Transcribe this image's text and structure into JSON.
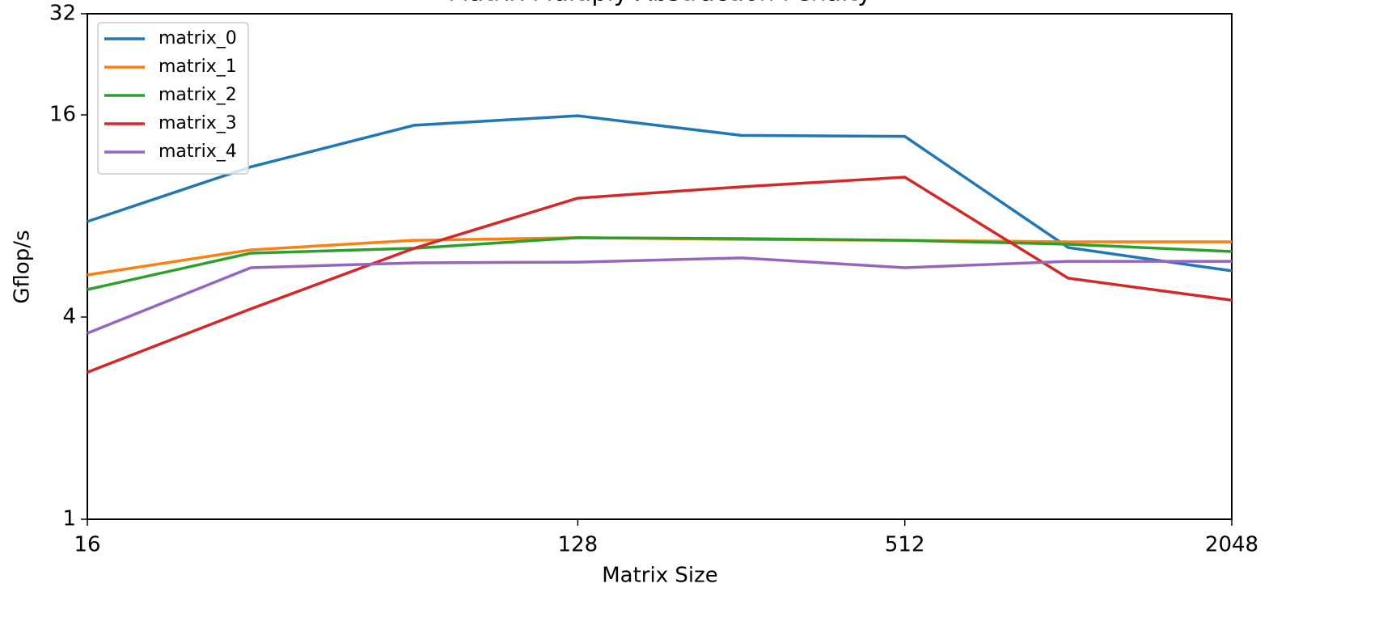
{
  "chart_data": {
    "type": "line",
    "title": "Matrix Multiply Abstraction Penalty",
    "xlabel": "Matrix Size",
    "ylabel": "Gflop/s",
    "x": [
      16,
      32,
      64,
      128,
      256,
      512,
      1024,
      2048
    ],
    "series": [
      {
        "name": "matrix_0",
        "color": "#1f77b4",
        "values": [
          7.7,
          11.2,
          14.9,
          15.9,
          13.9,
          13.8,
          6.44,
          5.49
        ]
      },
      {
        "name": "matrix_1",
        "color": "#ff7f0e",
        "values": [
          5.34,
          6.34,
          6.77,
          6.89,
          6.81,
          6.77,
          6.7,
          6.7
        ]
      },
      {
        "name": "matrix_2",
        "color": "#2ca02c",
        "values": [
          4.83,
          6.2,
          6.41,
          6.89,
          6.85,
          6.77,
          6.59,
          6.27
        ]
      },
      {
        "name": "matrix_3",
        "color": "#d62728",
        "values": [
          2.74,
          4.23,
          6.41,
          9.04,
          9.77,
          10.44,
          5.22,
          4.49
        ]
      },
      {
        "name": "matrix_4",
        "color": "#9467bd",
        "values": [
          3.58,
          5.61,
          5.8,
          5.83,
          6.0,
          5.61,
          5.86,
          5.86
        ]
      }
    ],
    "xlim": [
      16,
      2048
    ],
    "xticks": [
      16,
      128,
      512,
      2048
    ],
    "ylim": [
      1,
      32
    ],
    "yticks": [
      1,
      4,
      16,
      32
    ],
    "xscale": "log",
    "yscale": "log",
    "log_base": 2,
    "legend": "upper left",
    "grid": false
  }
}
